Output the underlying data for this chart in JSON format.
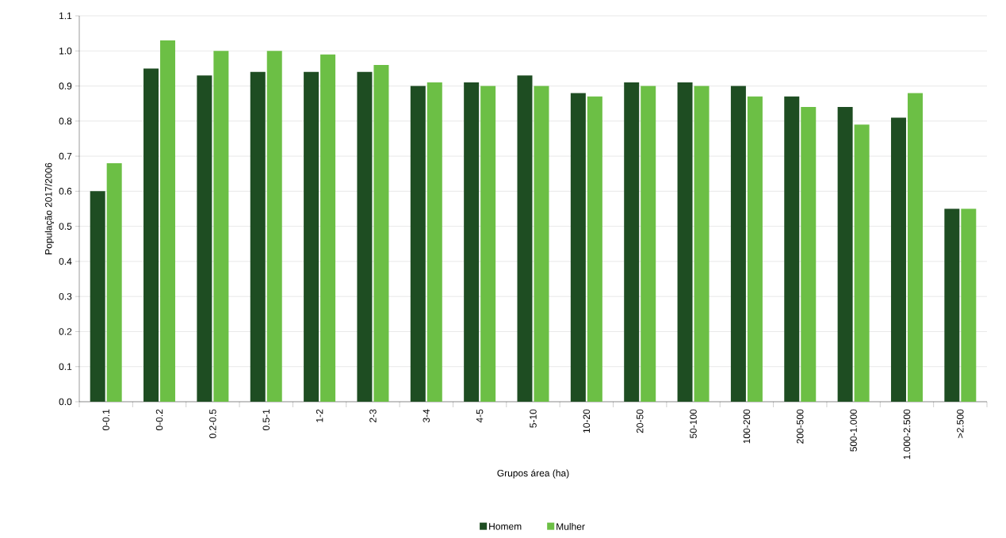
{
  "chart_data": {
    "type": "bar",
    "xlabel": "Grupos área (ha)",
    "ylabel": "População 2017/2006",
    "categories": [
      "0-0.1",
      "0-0.2",
      "0.2-0.5",
      "0.5-1",
      "1-2",
      "2-3",
      "3-4",
      "4-5",
      "5-10",
      "10-20",
      "20-50",
      "50-100",
      "100-200",
      "200-500",
      "500-1.000",
      "1.000-2.500",
      ">2.500"
    ],
    "series": [
      {
        "name": "Homem",
        "color": "#1e4d22",
        "values": [
          0.6,
          0.95,
          0.93,
          0.94,
          0.94,
          0.94,
          0.9,
          0.91,
          0.93,
          0.88,
          0.91,
          0.91,
          0.9,
          0.87,
          0.84,
          0.81,
          0.55
        ]
      },
      {
        "name": "Mulher",
        "color": "#6cbf45",
        "values": [
          0.68,
          1.03,
          1.0,
          1.0,
          0.99,
          0.96,
          0.91,
          0.9,
          0.9,
          0.87,
          0.9,
          0.9,
          0.87,
          0.84,
          0.79,
          0.88,
          0.55
        ]
      }
    ],
    "ylim": [
      0,
      1.1
    ],
    "yticks": [
      {
        "value": 0,
        "label": "0.0"
      },
      0.1,
      0.2,
      0.3,
      0.4,
      0.5,
      0.6,
      0.7,
      0.8,
      0.9,
      {
        "value": 1.0,
        "label": "1.0"
      },
      1.1
    ],
    "grid": "y",
    "legend": "bottom"
  }
}
